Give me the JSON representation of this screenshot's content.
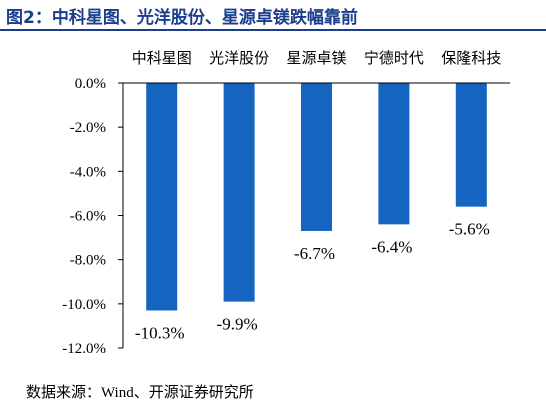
{
  "title": "图2：中科星图、光洋股份、星源卓镁跌幅靠前",
  "source": "数据来源：Wind、开源证券研究所",
  "colors": {
    "title": "#1a3e8c",
    "bar": "#1565c0",
    "axis": "#000000"
  },
  "chart_data": {
    "type": "bar",
    "categories": [
      "中科星图",
      "光洋股份",
      "星源卓镁",
      "宁德时代",
      "保隆科技"
    ],
    "values": [
      -10.3,
      -9.9,
      -6.7,
      -6.4,
      -5.6
    ],
    "data_labels": [
      "-10.3%",
      "-9.9%",
      "-6.7%",
      "-6.4%",
      "-5.6%"
    ],
    "ylim": [
      -12.0,
      0.0
    ],
    "yticks": [
      0.0,
      -2.0,
      -4.0,
      -6.0,
      -8.0,
      -10.0,
      -12.0
    ],
    "ytick_labels": [
      "0.0%",
      "-2.0%",
      "-4.0%",
      "-6.0%",
      "-8.0%",
      "-10.0%",
      "-12.0%"
    ],
    "xaxis_position": "top",
    "grid": false,
    "legend": "none"
  }
}
